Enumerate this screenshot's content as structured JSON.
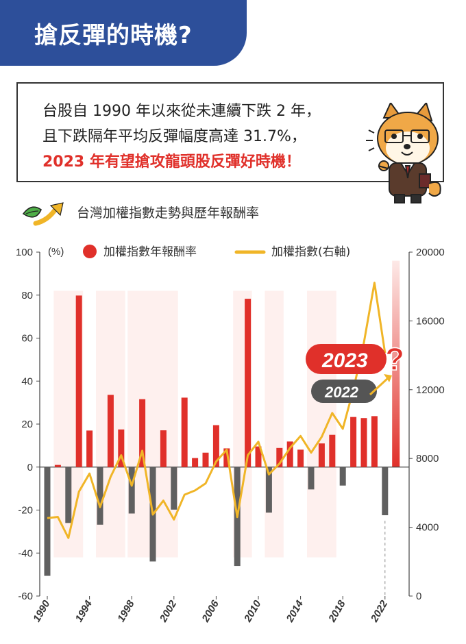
{
  "header": {
    "title": "搶反彈的時機?"
  },
  "bubble": {
    "line1": "台股自 1990 年以來從未連續下跌 2 年，",
    "line2": "且下跌隔年平均反彈幅度高達 31.7%，",
    "line3": "2023 年有望搶攻龍頭股反彈好時機！"
  },
  "chart_title": "台灣加權指數走勢與歷年報酬率",
  "chart_data": {
    "type": "bar",
    "left_axis": {
      "unit": "(%)",
      "min": -60,
      "max": 100,
      "ticks": [
        "100",
        "80",
        "60",
        "40",
        "20",
        "0",
        "-20",
        "-40",
        "-60"
      ]
    },
    "right_axis": {
      "min": 0,
      "max": 20000,
      "ticks": [
        "20000",
        "16000",
        "12000",
        "8000",
        "4000",
        "0"
      ]
    },
    "x_ticks": [
      "1990",
      "1994",
      "1998",
      "2002",
      "2006",
      "2010",
      "2014",
      "2018",
      "2022"
    ],
    "legend": {
      "bars": "加權指數年報酬率",
      "line": "加權指數(右軸)"
    },
    "years": [
      1990,
      1991,
      1992,
      1993,
      1994,
      1995,
      1996,
      1997,
      1998,
      1999,
      2000,
      2001,
      2002,
      2003,
      2004,
      2005,
      2006,
      2007,
      2008,
      2009,
      2010,
      2011,
      2012,
      2013,
      2014,
      2015,
      2016,
      2017,
      2018,
      2019,
      2020,
      2021,
      2022
    ],
    "returns": [
      -50.6,
      1.0,
      -26.0,
      79.8,
      17.0,
      -26.8,
      33.6,
      17.5,
      -21.6,
      31.6,
      -43.9,
      17.1,
      -19.8,
      32.3,
      4.2,
      6.7,
      19.5,
      8.7,
      -46.0,
      78.3,
      9.6,
      -21.2,
      8.9,
      11.9,
      8.1,
      -10.4,
      11.0,
      15.0,
      -8.6,
      23.3,
      22.8,
      23.7,
      -22.4
    ],
    "index": [
      4530,
      4600,
      3377,
      6070,
      7124,
      5173,
      6933,
      8187,
      6418,
      8448,
      4739,
      5551,
      4452,
      5890,
      6139,
      6548,
      7823,
      8506,
      4591,
      8188,
      8973,
      7072,
      7700,
      8611,
      9307,
      8338,
      9254,
      10643,
      9727,
      11997,
      14732,
      18218,
      14138
    ],
    "highlight_years": [
      "2023",
      "2022"
    ],
    "colors": {
      "up": "#e0302a",
      "down": "#606060",
      "line": "#f0b527",
      "shade": "#fde9e7"
    }
  }
}
